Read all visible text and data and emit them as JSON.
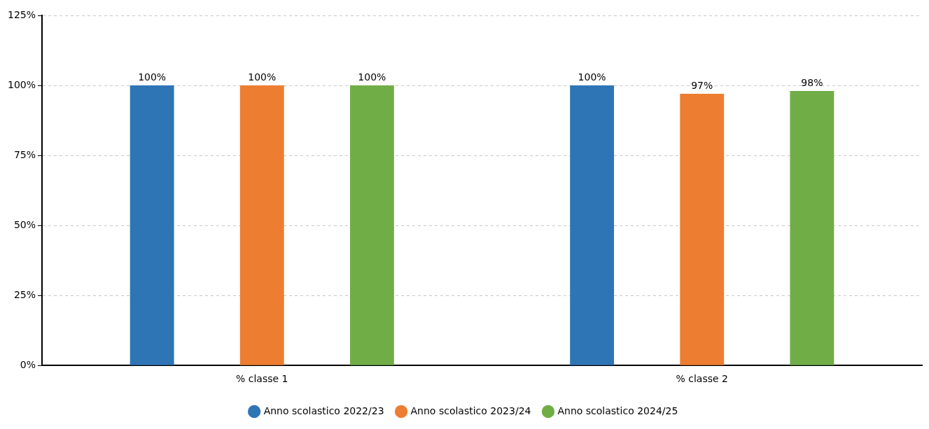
{
  "chart_data": {
    "type": "bar",
    "categories": [
      "% classe 1",
      "% classe 2"
    ],
    "series": [
      {
        "name": "Anno scolastico 2022/23",
        "color": "#2e75b6",
        "values": [
          100,
          100
        ],
        "value_labels": [
          "100%",
          "100%"
        ]
      },
      {
        "name": "Anno scolastico 2023/24",
        "color": "#ed7d31",
        "values": [
          100,
          97
        ],
        "value_labels": [
          "100%",
          "97%"
        ]
      },
      {
        "name": "Anno scolastico 2024/25",
        "color": "#70ad47",
        "values": [
          100,
          98
        ],
        "value_labels": [
          "100%",
          "98%"
        ]
      }
    ],
    "ylim": [
      0,
      125
    ],
    "yticks": [
      {
        "value": 0,
        "label": "0%"
      },
      {
        "value": 25,
        "label": "25%"
      },
      {
        "value": 50,
        "label": "50%"
      },
      {
        "value": 75,
        "label": "75%"
      },
      {
        "value": 100,
        "label": "100%"
      },
      {
        "value": 125,
        "label": "125%"
      }
    ],
    "grid": "y",
    "legend": "bottom"
  }
}
